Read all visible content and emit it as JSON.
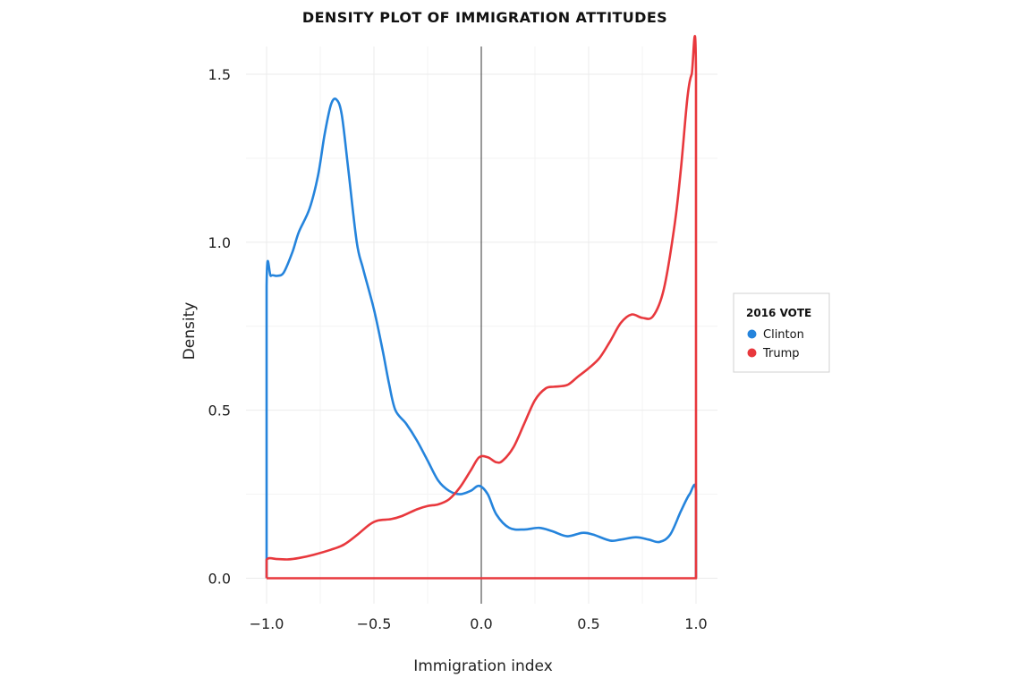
{
  "chart_data": {
    "type": "line",
    "title": "DENSITY PLOT OF IMMIGRATION ATTITUDES",
    "xlabel": "Immigration index",
    "ylabel": "Density",
    "xlim": [
      -1.0,
      1.0
    ],
    "ylim": [
      0.0,
      1.5
    ],
    "x_ticks": [
      "-1.0",
      "-0.5",
      "0.0",
      "0.5",
      "1.0"
    ],
    "y_ticks": [
      "0.0",
      "0.5",
      "1.0",
      "1.5"
    ],
    "grid": true,
    "reference_line_x": 0.0,
    "legend": {
      "title": "2016 VOTE",
      "placement": "right"
    },
    "series": [
      {
        "name": "Clinton",
        "color": "#2584dc",
        "points": [
          [
            -1.0,
            0.0
          ],
          [
            -1.0,
            0.87
          ],
          [
            -0.98,
            0.9
          ],
          [
            -0.95,
            0.9
          ],
          [
            -0.92,
            0.91
          ],
          [
            -0.88,
            0.97
          ],
          [
            -0.85,
            1.03
          ],
          [
            -0.8,
            1.1
          ],
          [
            -0.76,
            1.2
          ],
          [
            -0.73,
            1.32
          ],
          [
            -0.7,
            1.41
          ],
          [
            -0.675,
            1.425
          ],
          [
            -0.65,
            1.38
          ],
          [
            -0.62,
            1.22
          ],
          [
            -0.58,
            1.0
          ],
          [
            -0.55,
            0.92
          ],
          [
            -0.5,
            0.8
          ],
          [
            -0.46,
            0.68
          ],
          [
            -0.43,
            0.58
          ],
          [
            -0.4,
            0.5
          ],
          [
            -0.35,
            0.46
          ],
          [
            -0.3,
            0.41
          ],
          [
            -0.25,
            0.35
          ],
          [
            -0.2,
            0.29
          ],
          [
            -0.15,
            0.26
          ],
          [
            -0.1,
            0.25
          ],
          [
            -0.05,
            0.26
          ],
          [
            -0.01,
            0.275
          ],
          [
            0.03,
            0.25
          ],
          [
            0.07,
            0.19
          ],
          [
            0.13,
            0.15
          ],
          [
            0.2,
            0.145
          ],
          [
            0.27,
            0.15
          ],
          [
            0.33,
            0.14
          ],
          [
            0.4,
            0.125
          ],
          [
            0.47,
            0.135
          ],
          [
            0.52,
            0.13
          ],
          [
            0.6,
            0.112
          ],
          [
            0.65,
            0.115
          ],
          [
            0.72,
            0.122
          ],
          [
            0.78,
            0.115
          ],
          [
            0.83,
            0.108
          ],
          [
            0.88,
            0.13
          ],
          [
            0.93,
            0.2
          ],
          [
            0.97,
            0.25
          ],
          [
            1.0,
            0.26
          ],
          [
            1.0,
            0.0
          ]
        ]
      },
      {
        "name": "Trump",
        "color": "#e8383d",
        "points": [
          [
            -1.0,
            0.0
          ],
          [
            -1.0,
            0.055
          ],
          [
            -0.95,
            0.057
          ],
          [
            -0.9,
            0.056
          ],
          [
            -0.85,
            0.06
          ],
          [
            -0.78,
            0.07
          ],
          [
            -0.7,
            0.085
          ],
          [
            -0.64,
            0.1
          ],
          [
            -0.58,
            0.128
          ],
          [
            -0.52,
            0.16
          ],
          [
            -0.48,
            0.172
          ],
          [
            -0.42,
            0.176
          ],
          [
            -0.37,
            0.185
          ],
          [
            -0.3,
            0.205
          ],
          [
            -0.25,
            0.215
          ],
          [
            -0.2,
            0.22
          ],
          [
            -0.15,
            0.235
          ],
          [
            -0.1,
            0.27
          ],
          [
            -0.05,
            0.32
          ],
          [
            -0.01,
            0.36
          ],
          [
            0.03,
            0.36
          ],
          [
            0.07,
            0.345
          ],
          [
            0.1,
            0.35
          ],
          [
            0.15,
            0.39
          ],
          [
            0.2,
            0.46
          ],
          [
            0.25,
            0.53
          ],
          [
            0.3,
            0.565
          ],
          [
            0.34,
            0.57
          ],
          [
            0.4,
            0.575
          ],
          [
            0.45,
            0.6
          ],
          [
            0.5,
            0.625
          ],
          [
            0.55,
            0.655
          ],
          [
            0.6,
            0.705
          ],
          [
            0.65,
            0.76
          ],
          [
            0.7,
            0.785
          ],
          [
            0.75,
            0.775
          ],
          [
            0.8,
            0.78
          ],
          [
            0.85,
            0.86
          ],
          [
            0.9,
            1.05
          ],
          [
            0.93,
            1.22
          ],
          [
            0.96,
            1.43
          ],
          [
            0.98,
            1.5
          ],
          [
            1.0,
            1.5
          ],
          [
            1.0,
            0.0
          ],
          [
            -1.0,
            0.0
          ]
        ]
      }
    ]
  }
}
